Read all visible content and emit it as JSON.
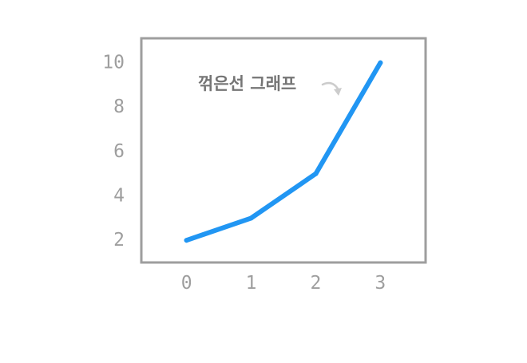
{
  "chart_data": {
    "type": "line",
    "x": [
      0,
      1,
      2,
      3
    ],
    "series": [
      {
        "values": [
          2,
          3,
          5,
          10
        ]
      }
    ],
    "xticks": [
      "0",
      "1",
      "2",
      "3"
    ],
    "yticks": [
      "2",
      "4",
      "6",
      "8",
      "10"
    ],
    "xlim": [
      -0.7,
      3.7
    ],
    "ylim": [
      1,
      11.1
    ],
    "grid": false,
    "annotation": {
      "text": "꺾은선 그래프",
      "arrow": "points down-right toward the line"
    },
    "colors": {
      "line": "#2196f3",
      "frame": "#9e9e9e",
      "tick_text": "#9e9e9e",
      "annotation_text": "#757575",
      "annotation_arrow": "#cccccc"
    }
  }
}
